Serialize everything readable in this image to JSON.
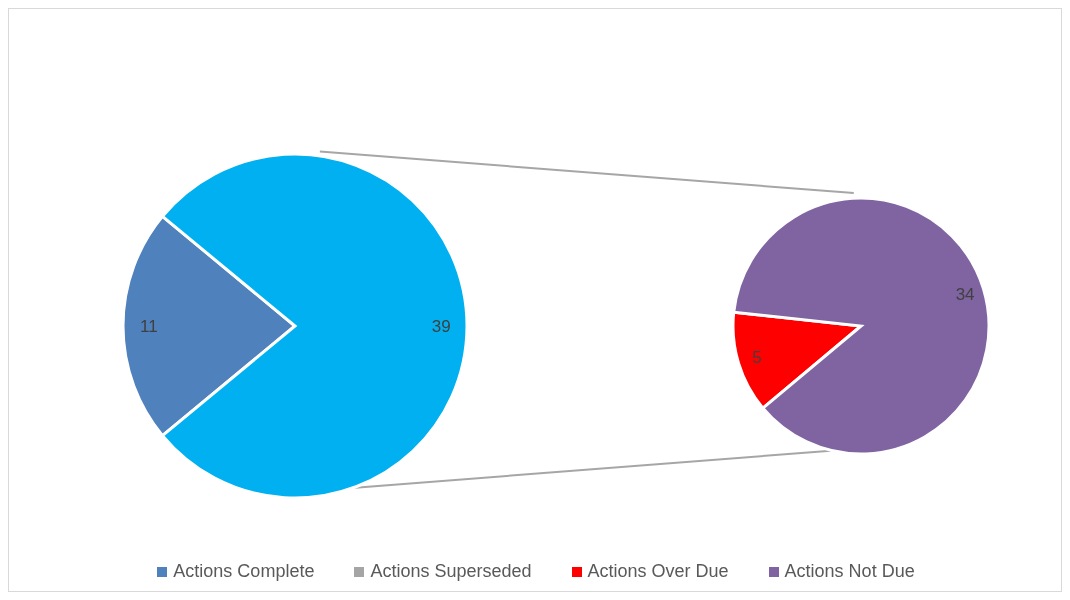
{
  "chart_data": [
    {
      "type": "pie",
      "categories": [
        "Actions Complete",
        "Actions Superseded",
        null
      ],
      "values": [
        11,
        0,
        39
      ],
      "colors": [
        "#4f81bd",
        "#a5a5a5",
        "#00b0f0"
      ],
      "data_labels": true,
      "legend": "bottom"
    },
    {
      "type": "pie",
      "categories": [
        "Actions Over Due",
        "Actions Not Due"
      ],
      "values": [
        5,
        34
      ],
      "colors": [
        "#ff0000",
        "#8064a2"
      ],
      "data_labels": true,
      "legend": "bottom"
    }
  ]
}
